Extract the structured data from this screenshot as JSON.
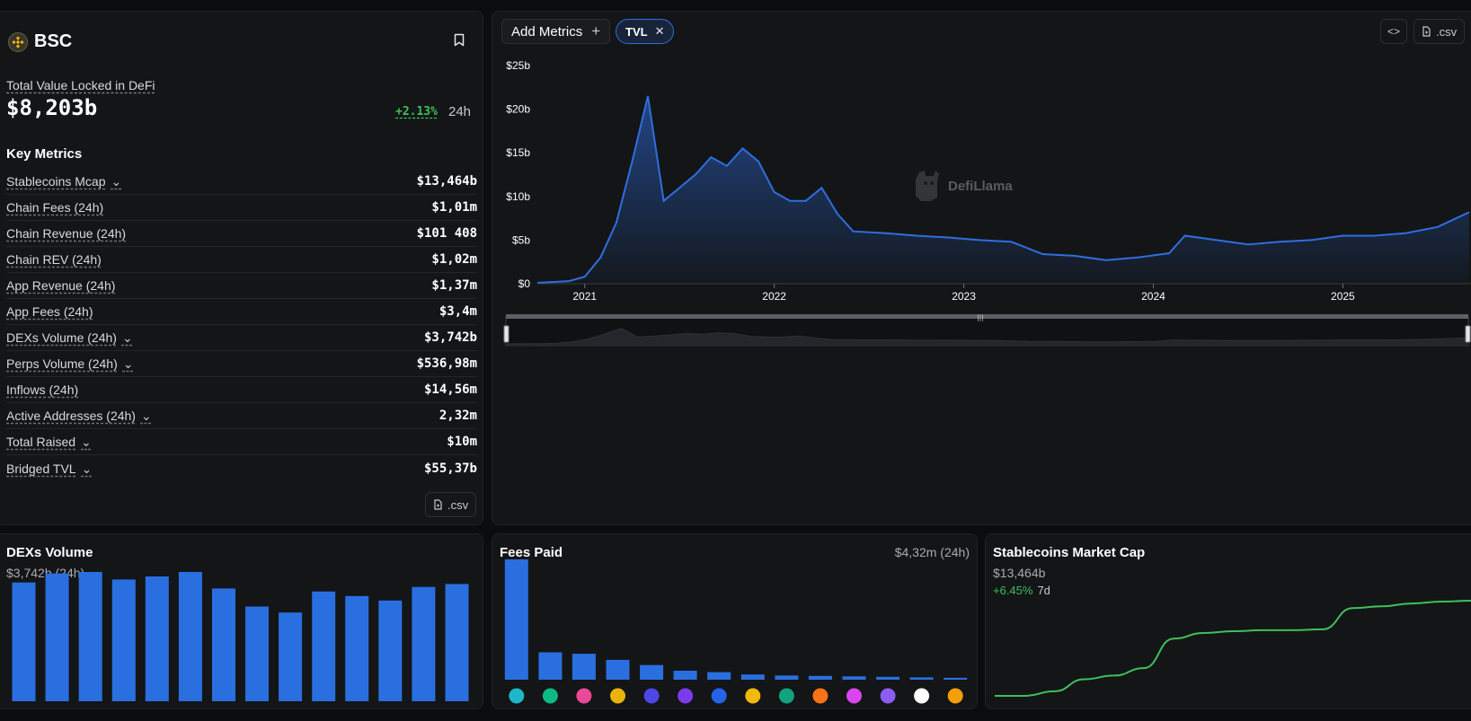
{
  "chain": {
    "name": "BSC"
  },
  "tvl": {
    "label": "Total Value Locked in DeFi",
    "value": "$8,203b",
    "change": "+2.13%",
    "change_period": "24h"
  },
  "key_metrics": {
    "title": "Key Metrics",
    "rows": [
      {
        "label": "Stablecoins Mcap",
        "value": "$13,464b",
        "expandable": true
      },
      {
        "label": "Chain Fees (24h)",
        "value": "$1,01m",
        "expandable": false
      },
      {
        "label": "Chain Revenue (24h)",
        "value": "$101 408",
        "expandable": false
      },
      {
        "label": "Chain REV (24h)",
        "value": "$1,02m",
        "expandable": false
      },
      {
        "label": "App Revenue (24h)",
        "value": "$1,37m",
        "expandable": false
      },
      {
        "label": "App Fees (24h)",
        "value": "$3,4m",
        "expandable": false
      },
      {
        "label": "DEXs Volume (24h)",
        "value": "$3,742b",
        "expandable": true
      },
      {
        "label": "Perps Volume (24h)",
        "value": "$536,98m",
        "expandable": true
      },
      {
        "label": "Inflows (24h)",
        "value": "$14,56m",
        "expandable": false
      },
      {
        "label": "Active Addresses (24h)",
        "value": "2,32m",
        "expandable": true
      },
      {
        "label": "Total Raised",
        "value": "$10m",
        "expandable": true
      },
      {
        "label": "Bridged TVL",
        "value": "$55,37b",
        "expandable": true
      }
    ],
    "csv_label": ".csv"
  },
  "toolbar": {
    "add_metrics_label": "Add Metrics",
    "tvl_chip_label": "TVL",
    "embed_label": "<>",
    "csv_label": ".csv"
  },
  "watermark": "DefiLlama",
  "colors": {
    "accent_blue": "#2f6ee0",
    "positive_green": "#3fbf5c",
    "panel_bg": "#131517"
  },
  "chart_data": [
    {
      "type": "area",
      "series": [
        {
          "name": "TVL"
        }
      ],
      "y_ticks": [
        "$0",
        "$5b",
        "$10b",
        "$15b",
        "$20b",
        "$25b"
      ],
      "x_ticks": [
        "2021",
        "2022",
        "2023",
        "2024",
        "2025"
      ],
      "ylim": [
        0,
        25
      ],
      "points": [
        [
          "2020-10",
          0.1
        ],
        [
          "2020-12",
          0.3
        ],
        [
          "2021-01",
          0.8
        ],
        [
          "2021-02",
          3
        ],
        [
          "2021-03",
          7
        ],
        [
          "2021-04",
          14
        ],
        [
          "2021-05",
          21.5
        ],
        [
          "2021-06",
          9.5
        ],
        [
          "2021-07",
          11
        ],
        [
          "2021-08",
          12.5
        ],
        [
          "2021-09",
          14.5
        ],
        [
          "2021-10",
          13.5
        ],
        [
          "2021-11",
          15.5
        ],
        [
          "2021-12",
          14
        ],
        [
          "2022-01",
          10.5
        ],
        [
          "2022-02",
          9.5
        ],
        [
          "2022-03",
          9.5
        ],
        [
          "2022-04",
          11
        ],
        [
          "2022-05",
          8
        ],
        [
          "2022-06",
          6
        ],
        [
          "2022-08",
          5.8
        ],
        [
          "2022-10",
          5.5
        ],
        [
          "2022-12",
          5.3
        ],
        [
          "2023-02",
          5
        ],
        [
          "2023-04",
          4.8
        ],
        [
          "2023-06",
          3.4
        ],
        [
          "2023-08",
          3.2
        ],
        [
          "2023-10",
          2.7
        ],
        [
          "2023-12",
          3.0
        ],
        [
          "2024-02",
          3.5
        ],
        [
          "2024-03",
          5.5
        ],
        [
          "2024-05",
          5.0
        ],
        [
          "2024-07",
          4.5
        ],
        [
          "2024-09",
          4.8
        ],
        [
          "2024-11",
          5.0
        ],
        [
          "2025-01",
          5.5
        ],
        [
          "2025-03",
          5.5
        ],
        [
          "2025-05",
          5.8
        ],
        [
          "2025-07",
          6.5
        ],
        [
          "2025-09",
          8.2
        ]
      ]
    },
    {
      "type": "bar",
      "title": "DEXs Volume",
      "subtitle": "$3,742b (24h)",
      "values": [
        3.95,
        4.25,
        4.3,
        4.05,
        4.15,
        4.3,
        3.75,
        3.15,
        2.95,
        3.65,
        3.5,
        3.35,
        3.8,
        3.9
      ]
    },
    {
      "type": "bar",
      "title": "Fees Paid",
      "subtitle": "$4,32m (24h)",
      "values": [
        2.55,
        0.58,
        0.55,
        0.42,
        0.31,
        0.19,
        0.16,
        0.11,
        0.09,
        0.08,
        0.07,
        0.06,
        0.05,
        0.04
      ],
      "icon_colors": [
        "#1fb6c9",
        "#10b981",
        "#ec4899",
        "#eab308",
        "#4f46e5",
        "#7c3aed",
        "#2563eb",
        "#f0b90b",
        "#10a37f",
        "#f97316",
        "#d946ef",
        "#8b5cf6",
        "#ffffff",
        "#f59e0b"
      ]
    },
    {
      "type": "line",
      "title": "Stablecoins Market Cap",
      "subtitle": "$13,464b",
      "change": "+6.45%",
      "change_period": "7d",
      "values": [
        0.0,
        0.0,
        0.05,
        0.18,
        0.22,
        0.3,
        0.62,
        0.68,
        0.7,
        0.71,
        0.71,
        0.72,
        0.95,
        0.97,
        1.0,
        1.02,
        1.03
      ]
    }
  ]
}
